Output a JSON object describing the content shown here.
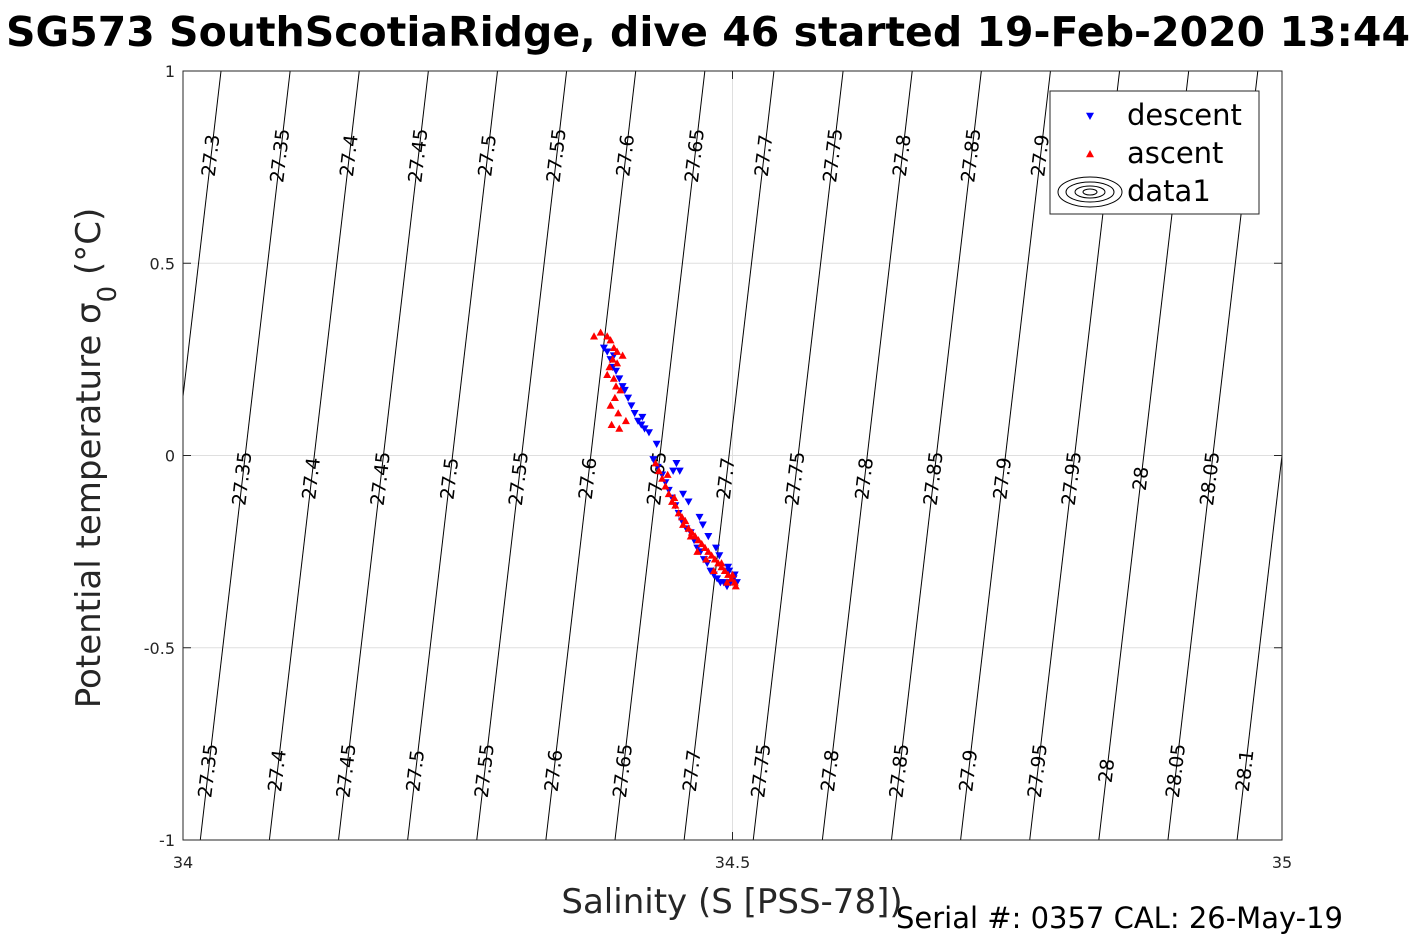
{
  "chart_data": {
    "type": "scatter",
    "title": "SG573 SouthScotiaRidge, dive 46 started 19-Feb-2020 13:44",
    "xlabel": "Salinity (S [PSS-78])",
    "ylabel_main": "Potential temperature σ",
    "ylabel_sub": "0",
    "ylabel_unit": "(°C)",
    "xlim": [
      34,
      35
    ],
    "ylim": [
      -1,
      1
    ],
    "xticks": [
      34,
      34.5,
      35
    ],
    "xtick_labels": [
      "34",
      "34.5",
      "35"
    ],
    "yticks": [
      -1,
      -0.5,
      0,
      0.5,
      1
    ],
    "ytick_labels": [
      "-1",
      "-0.5",
      "0",
      "0.5",
      "1"
    ],
    "grid": true,
    "legend_position": "top-right",
    "legend": [
      {
        "name": "descent",
        "marker": "triangle-down",
        "color": "#0000ff"
      },
      {
        "name": "ascent",
        "marker": "triangle-up",
        "color": "#ff0000"
      },
      {
        "name": "data1",
        "marker": "contour",
        "color": "#000000"
      }
    ],
    "contours": {
      "levels": [
        27.3,
        27.35,
        27.4,
        27.45,
        27.5,
        27.55,
        27.6,
        27.65,
        27.7,
        27.75,
        27.8,
        27.85,
        27.9,
        27.95,
        28,
        28.05,
        28.1
      ],
      "line_color": "#000000",
      "label_rows": [
        {
          "y": 0.78,
          "levels": [
            "27.3",
            "27.35",
            "27.4",
            "27.45",
            "27.5",
            "27.55",
            "27.6",
            "27.65",
            "27.7",
            "27.75",
            "27.8",
            "27.85",
            "27.9",
            "27.95",
            "28",
            "28.05"
          ]
        },
        {
          "y": -0.06,
          "levels": [
            "27.35",
            "27.4",
            "27.45",
            "27.5",
            "27.55",
            "27.6",
            "27.65",
            "27.7",
            "27.75",
            "27.8",
            "27.85",
            "27.9",
            "27.95",
            "28",
            "28.05",
            "28.1"
          ]
        },
        {
          "y": -0.82,
          "levels": [
            "27.35",
            "27.4",
            "27.45",
            "27.5",
            "27.55",
            "27.6",
            "27.65",
            "27.7",
            "27.75",
            "27.8",
            "27.85",
            "27.9",
            "27.95",
            "28",
            "28.05",
            "28.1"
          ]
        }
      ]
    },
    "series": [
      {
        "name": "descent",
        "color": "#0000ff",
        "marker": "triangle-down",
        "x": [
          34.383,
          34.386,
          34.389,
          34.391,
          34.394,
          34.397,
          34.4,
          34.402,
          34.405,
          34.408,
          34.411,
          34.414,
          34.417,
          34.42,
          34.424,
          34.428,
          34.432,
          34.436,
          34.439,
          34.442,
          34.445,
          34.448,
          34.451,
          34.454,
          34.458,
          34.462,
          34.465,
          34.468,
          34.471,
          34.474,
          34.477,
          34.48,
          34.483,
          34.486,
          34.489,
          34.492,
          34.495,
          34.498,
          34.501,
          34.504,
          34.449,
          34.452,
          34.455,
          34.47,
          34.478,
          34.488,
          34.496,
          34.502,
          34.392,
          34.418,
          34.431,
          34.446,
          34.46,
          34.473,
          34.485,
          34.497
        ],
        "y": [
          0.28,
          0.27,
          0.25,
          0.23,
          0.22,
          0.2,
          0.18,
          0.17,
          0.15,
          0.13,
          0.11,
          0.09,
          0.08,
          0.07,
          0.06,
          -0.01,
          -0.03,
          -0.05,
          -0.07,
          -0.09,
          -0.11,
          -0.13,
          -0.15,
          -0.17,
          -0.19,
          -0.2,
          -0.22,
          -0.24,
          -0.25,
          -0.27,
          -0.28,
          -0.3,
          -0.31,
          -0.32,
          -0.33,
          -0.33,
          -0.34,
          -0.33,
          -0.32,
          -0.33,
          -0.02,
          -0.04,
          -0.1,
          -0.16,
          -0.21,
          -0.26,
          -0.29,
          -0.31,
          0.26,
          0.1,
          0.03,
          -0.04,
          -0.12,
          -0.18,
          -0.24,
          -0.3
        ]
      },
      {
        "name": "ascent",
        "color": "#ff0000",
        "marker": "triangle-up",
        "x": [
          34.374,
          34.38,
          34.386,
          34.389,
          34.392,
          34.395,
          34.391,
          34.388,
          34.386,
          34.392,
          34.398,
          34.393,
          34.389,
          34.396,
          34.403,
          34.397,
          34.39,
          34.394,
          34.4,
          34.395,
          34.43,
          34.433,
          34.436,
          34.439,
          34.442,
          34.445,
          34.448,
          34.451,
          34.454,
          34.457,
          34.46,
          34.463,
          34.466,
          34.469,
          34.472,
          34.475,
          34.478,
          34.481,
          34.484,
          34.487,
          34.49,
          34.493,
          34.496,
          34.499,
          34.502,
          34.441,
          34.447,
          34.455,
          34.462,
          34.468,
          34.476,
          34.483,
          34.49,
          34.495,
          34.5,
          34.503
        ],
        "y": [
          0.31,
          0.32,
          0.31,
          0.3,
          0.28,
          0.27,
          0.25,
          0.23,
          0.21,
          0.2,
          0.17,
          0.15,
          0.13,
          0.11,
          0.09,
          0.07,
          0.08,
          0.18,
          0.26,
          0.24,
          -0.02,
          -0.04,
          -0.06,
          -0.08,
          -0.1,
          -0.12,
          -0.13,
          -0.15,
          -0.16,
          -0.17,
          -0.19,
          -0.2,
          -0.21,
          -0.22,
          -0.23,
          -0.24,
          -0.25,
          -0.26,
          -0.27,
          -0.28,
          -0.29,
          -0.3,
          -0.31,
          -0.32,
          -0.33,
          -0.05,
          -0.11,
          -0.18,
          -0.21,
          -0.25,
          -0.27,
          -0.3,
          -0.28,
          -0.33,
          -0.31,
          -0.34
        ]
      }
    ]
  },
  "footer": {
    "serial_text": "Serial #: 0357  CAL: 26-May-19"
  }
}
